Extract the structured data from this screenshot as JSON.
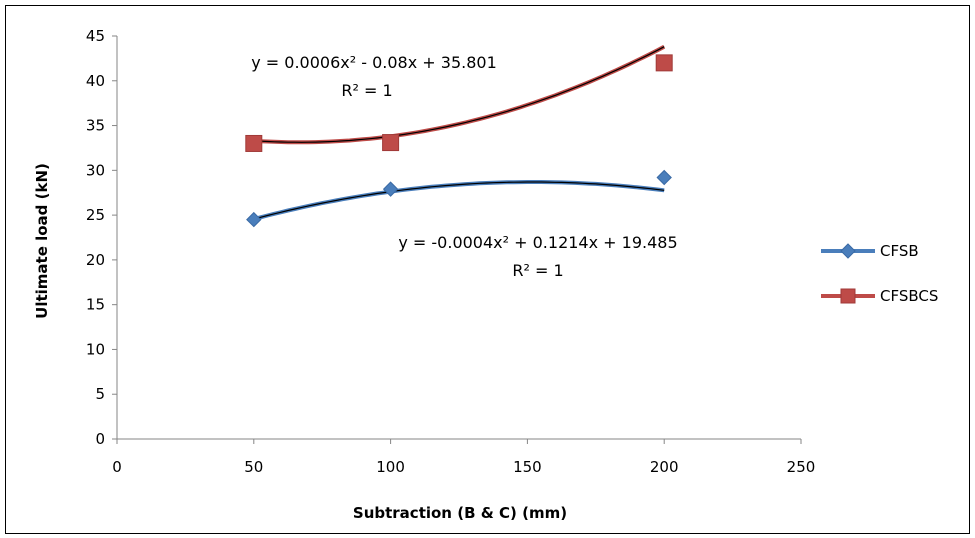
{
  "chart_data": {
    "type": "line",
    "title": "",
    "xlabel": "Subtraction (B & C) (mm)",
    "ylabel": "Ultimate load (kN)",
    "xlim": [
      0,
      250
    ],
    "ylim": [
      0,
      45
    ],
    "xticks": [
      "0",
      "50",
      "100",
      "150",
      "200",
      "250"
    ],
    "yticks": [
      "0",
      "5",
      "10",
      "15",
      "20",
      "25",
      "30",
      "35",
      "40",
      "45"
    ],
    "grid": false,
    "legend_position": "right",
    "series": [
      {
        "name": "CFSB",
        "color": "#4a7ebb",
        "marker": "diamond",
        "x": [
          50,
          100,
          200
        ],
        "y": [
          24.5,
          27.9,
          29.2
        ],
        "trendline": {
          "type": "polynomial",
          "coefficients": [
            -0.0004,
            0.1214,
            19.485
          ],
          "equation": "y = -0.0004x² + 0.1214x + 19.485",
          "r2": "R² = 1"
        }
      },
      {
        "name": "CFSBCS",
        "color": "#be4b48",
        "marker": "square",
        "x": [
          50,
          100,
          200
        ],
        "y": [
          33.0,
          33.1,
          42.0
        ],
        "trendline": {
          "type": "polynomial",
          "coefficients": [
            0.0006,
            -0.08,
            35.801
          ],
          "equation": "y = 0.0006x² - 0.08x + 35.801",
          "r2": "R² = 1"
        }
      }
    ]
  }
}
